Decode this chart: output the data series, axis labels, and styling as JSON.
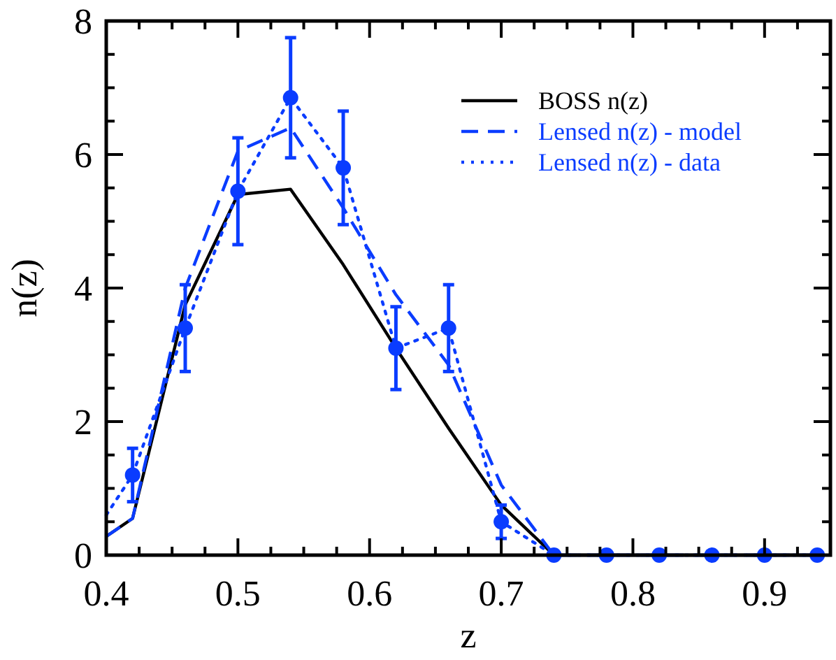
{
  "chart_data": {
    "type": "line",
    "xlabel": "z",
    "ylabel": "n(z)",
    "xlim": [
      0.4,
      0.95
    ],
    "ylim": [
      0,
      8
    ],
    "xticks": [
      0.4,
      {
        "value": 0.425,
        "label": null
      },
      {
        "value": 0.45,
        "label": null
      },
      {
        "value": 0.475,
        "label": null
      },
      0.5,
      {
        "value": 0.525,
        "label": null
      },
      {
        "value": 0.55,
        "label": null
      },
      {
        "value": 0.575,
        "label": null
      },
      0.6,
      {
        "value": 0.625,
        "label": null
      },
      {
        "value": 0.65,
        "label": null
      },
      {
        "value": 0.675,
        "label": null
      },
      0.7,
      {
        "value": 0.725,
        "label": null
      },
      {
        "value": 0.75,
        "label": null
      },
      {
        "value": 0.775,
        "label": null
      },
      0.8,
      {
        "value": 0.825,
        "label": null
      },
      {
        "value": 0.85,
        "label": null
      },
      {
        "value": 0.875,
        "label": null
      },
      0.9,
      {
        "value": 0.925,
        "label": null
      }
    ],
    "yticks": [
      0,
      {
        "value": 0.5,
        "label": null
      },
      {
        "value": 1,
        "label": null
      },
      {
        "value": 1.5,
        "label": null
      },
      2,
      {
        "value": 2.5,
        "label": null
      },
      {
        "value": 3,
        "label": null
      },
      {
        "value": 3.5,
        "label": null
      },
      4,
      {
        "value": 4.5,
        "label": null
      },
      {
        "value": 5,
        "label": null
      },
      {
        "value": 5.5,
        "label": null
      },
      6,
      {
        "value": 6.5,
        "label": null
      },
      {
        "value": 7,
        "label": null
      },
      {
        "value": 7.5,
        "label": null
      },
      8
    ],
    "grid": false,
    "legend": "top right",
    "series": [
      {
        "name": "BOSS n(z)",
        "marker": "none",
        "line_style": "solid",
        "color": "#000000",
        "x": [
          0.4,
          0.42,
          0.46,
          0.5,
          0.54,
          0.58,
          0.62,
          0.66,
          0.7,
          0.74,
          0.78,
          0.82,
          0.86,
          0.9,
          0.94
        ],
        "values": [
          0.28,
          0.55,
          3.75,
          5.4,
          5.48,
          4.35,
          3.1,
          1.9,
          0.75,
          0,
          0,
          0,
          0,
          0,
          0
        ]
      },
      {
        "name": "Lensed n(z) - model",
        "marker": "none",
        "line_style": "dashed",
        "color": "#0a3cff",
        "x": [
          0.4,
          0.42,
          0.46,
          0.5,
          0.54,
          0.58,
          0.62,
          0.66,
          0.7,
          0.74,
          0.78,
          0.82,
          0.86,
          0.9,
          0.94
        ],
        "values": [
          0.28,
          0.55,
          4.0,
          6.05,
          6.4,
          5.2,
          3.9,
          2.85,
          1.05,
          0,
          0,
          0,
          0,
          0,
          0
        ]
      },
      {
        "name": "Lensed n(z) - data",
        "marker": "none",
        "line_style": "dotted",
        "color": "#0a3cff",
        "x": [
          0.4,
          0.42,
          0.46,
          0.5,
          0.54,
          0.58,
          0.62,
          0.66,
          0.7,
          0.74,
          0.78,
          0.82,
          0.86,
          0.9,
          0.94
        ],
        "values": [
          0.6,
          1.2,
          3.4,
          5.45,
          6.85,
          5.8,
          3.1,
          3.4,
          0.5,
          0,
          0,
          0,
          0,
          0,
          0
        ]
      },
      {
        "type": "scatter",
        "marker": "circle",
        "color": "#0a3cff",
        "x": [
          0.42,
          0.46,
          0.5,
          0.54,
          0.58,
          0.62,
          0.66,
          0.7,
          0.74,
          0.78,
          0.82,
          0.86,
          0.9,
          0.94
        ],
        "values": [
          1.2,
          3.4,
          5.45,
          6.85,
          5.8,
          3.1,
          3.4,
          0.5,
          0,
          0,
          0,
          0,
          0,
          0
        ],
        "errors": [
          0.4,
          0.65,
          0.8,
          0.9,
          0.85,
          0.62,
          0.65,
          0.25,
          null,
          null,
          null,
          null,
          null,
          null
        ]
      }
    ]
  }
}
